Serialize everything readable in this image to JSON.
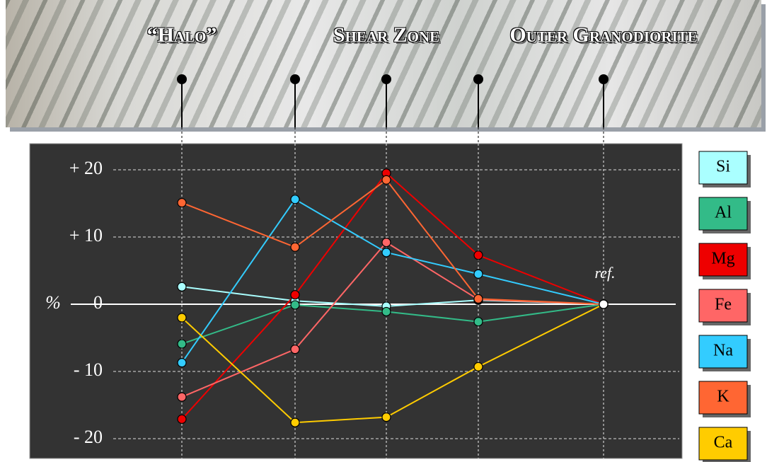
{
  "chart_data": {
    "type": "line",
    "categories": [
      "“Halo”",
      null,
      "Shear Zone",
      null,
      "Outer Granodiorite"
    ],
    "y_label": "%",
    "annotation": "ref.",
    "ylim": [
      -23,
      24
    ],
    "yticks": [
      {
        "value": 20,
        "label": "+ 20"
      },
      {
        "value": 10,
        "label": "+ 10"
      },
      0,
      {
        "value": -10,
        "label": "- 10"
      },
      {
        "value": -20,
        "label": "- 20"
      }
    ],
    "grid": true,
    "series": [
      {
        "name": "Si",
        "color": "#aaffff",
        "values": [
          2.6,
          0.5,
          -0.3,
          0.6,
          0
        ]
      },
      {
        "name": "Al",
        "color": "#33bb88",
        "values": [
          -5.9,
          -0.1,
          -1.1,
          -2.6,
          0
        ]
      },
      {
        "name": "Mg",
        "color": "#ee0000",
        "values": [
          -17.1,
          1.4,
          19.5,
          7.3,
          0
        ]
      },
      {
        "name": "Fe",
        "color": "#ff6666",
        "values": [
          -13.8,
          -6.7,
          9.2,
          0.7,
          0
        ]
      },
      {
        "name": "Na",
        "color": "#33ccff",
        "values": [
          -8.7,
          15.6,
          7.7,
          4.5,
          0
        ]
      },
      {
        "name": "K",
        "color": "#ff6633",
        "values": [
          15.1,
          8.5,
          18.5,
          0.8,
          0
        ]
      },
      {
        "name": "Ca",
        "color": "#ffcc00",
        "values": [
          -2.0,
          -17.6,
          -16.8,
          -9.3,
          0
        ]
      }
    ]
  }
}
